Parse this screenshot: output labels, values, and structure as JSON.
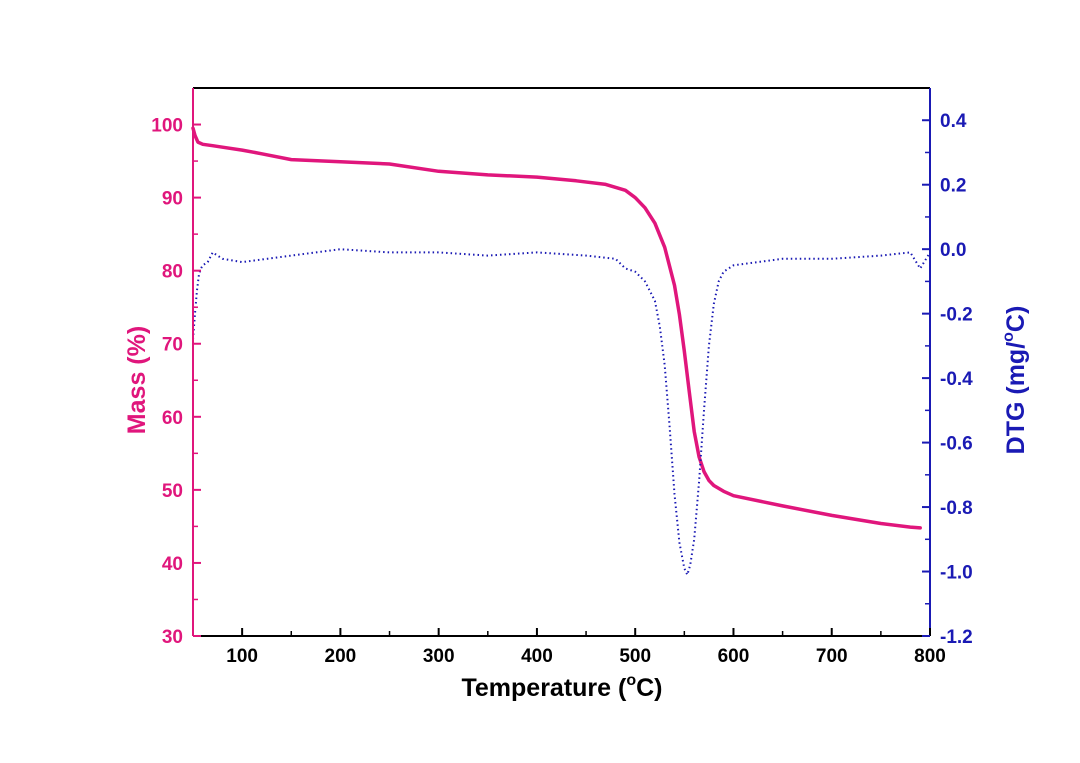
{
  "chart_data": {
    "type": "line",
    "title": "",
    "x": {
      "label_prefix": "Temperature  (",
      "label_sup": "o",
      "label_suffix": "C)",
      "range": [
        50,
        800
      ],
      "ticks": [
        100,
        200,
        300,
        400,
        500,
        600,
        700,
        800
      ],
      "tick_labels": [
        "100",
        "200",
        "300",
        "400",
        "500",
        "600",
        "700",
        "800"
      ]
    },
    "y_left": {
      "label": "Mass (%)",
      "range": [
        30,
        105
      ],
      "ticks": [
        30,
        40,
        50,
        60,
        70,
        80,
        90,
        100
      ],
      "tick_labels": [
        "30",
        "40",
        "50",
        "60",
        "70",
        "80",
        "90",
        "100"
      ],
      "color": "#e0167c"
    },
    "y_right": {
      "label_prefix": "DTG (mg/",
      "label_sup": "o",
      "label_suffix": "C)",
      "range": [
        -1.2,
        0.5
      ],
      "ticks": [
        -1.2,
        -1.0,
        -0.8,
        -0.6,
        -0.4,
        -0.2,
        0.0,
        0.2,
        0.4
      ],
      "tick_labels": [
        "-1.2",
        "-1.0",
        "-0.8",
        "-0.6",
        "-0.4",
        "-0.2",
        "0.0",
        "0.2",
        "0.4"
      ],
      "color": "#1a1ab4"
    },
    "series": [
      {
        "name": "Mass",
        "axis": "left",
        "style": "solid",
        "color": "#e0167c",
        "x": [
          50,
          52,
          55,
          60,
          70,
          80,
          100,
          120,
          150,
          200,
          250,
          300,
          350,
          400,
          440,
          470,
          490,
          500,
          510,
          520,
          530,
          540,
          545,
          550,
          555,
          560,
          565,
          570,
          575,
          580,
          590,
          600,
          650,
          700,
          750,
          780,
          790
        ],
        "y": [
          99.5,
          98.5,
          97.6,
          97.3,
          97.1,
          96.9,
          96.5,
          96.0,
          95.2,
          94.9,
          94.6,
          93.6,
          93.1,
          92.8,
          92.3,
          91.8,
          91.0,
          90.0,
          88.6,
          86.5,
          83.2,
          78.0,
          74.0,
          69.0,
          63.5,
          58.0,
          54.5,
          52.5,
          51.3,
          50.6,
          49.8,
          49.2,
          47.8,
          46.5,
          45.4,
          44.9,
          44.8
        ]
      },
      {
        "name": "DTG",
        "axis": "right",
        "style": "dotted",
        "color": "#1a1ab4",
        "x": [
          50,
          52,
          54,
          56,
          58,
          60,
          65,
          70,
          80,
          100,
          150,
          200,
          250,
          300,
          350,
          400,
          450,
          480,
          490,
          500,
          510,
          520,
          525,
          530,
          535,
          540,
          545,
          550,
          553,
          556,
          560,
          565,
          570,
          575,
          580,
          585,
          590,
          595,
          600,
          650,
          700,
          750,
          780,
          790,
          800
        ],
        "y": [
          -0.28,
          -0.2,
          -0.13,
          -0.08,
          -0.06,
          -0.05,
          -0.04,
          -0.01,
          -0.03,
          -0.04,
          -0.02,
          0.0,
          -0.01,
          -0.01,
          -0.02,
          -0.01,
          -0.02,
          -0.03,
          -0.06,
          -0.07,
          -0.1,
          -0.16,
          -0.24,
          -0.36,
          -0.55,
          -0.76,
          -0.91,
          -0.99,
          -1.01,
          -0.98,
          -0.9,
          -0.72,
          -0.5,
          -0.3,
          -0.17,
          -0.1,
          -0.07,
          -0.06,
          -0.05,
          -0.03,
          -0.03,
          -0.02,
          -0.01,
          -0.06,
          -0.01
        ]
      }
    ]
  }
}
